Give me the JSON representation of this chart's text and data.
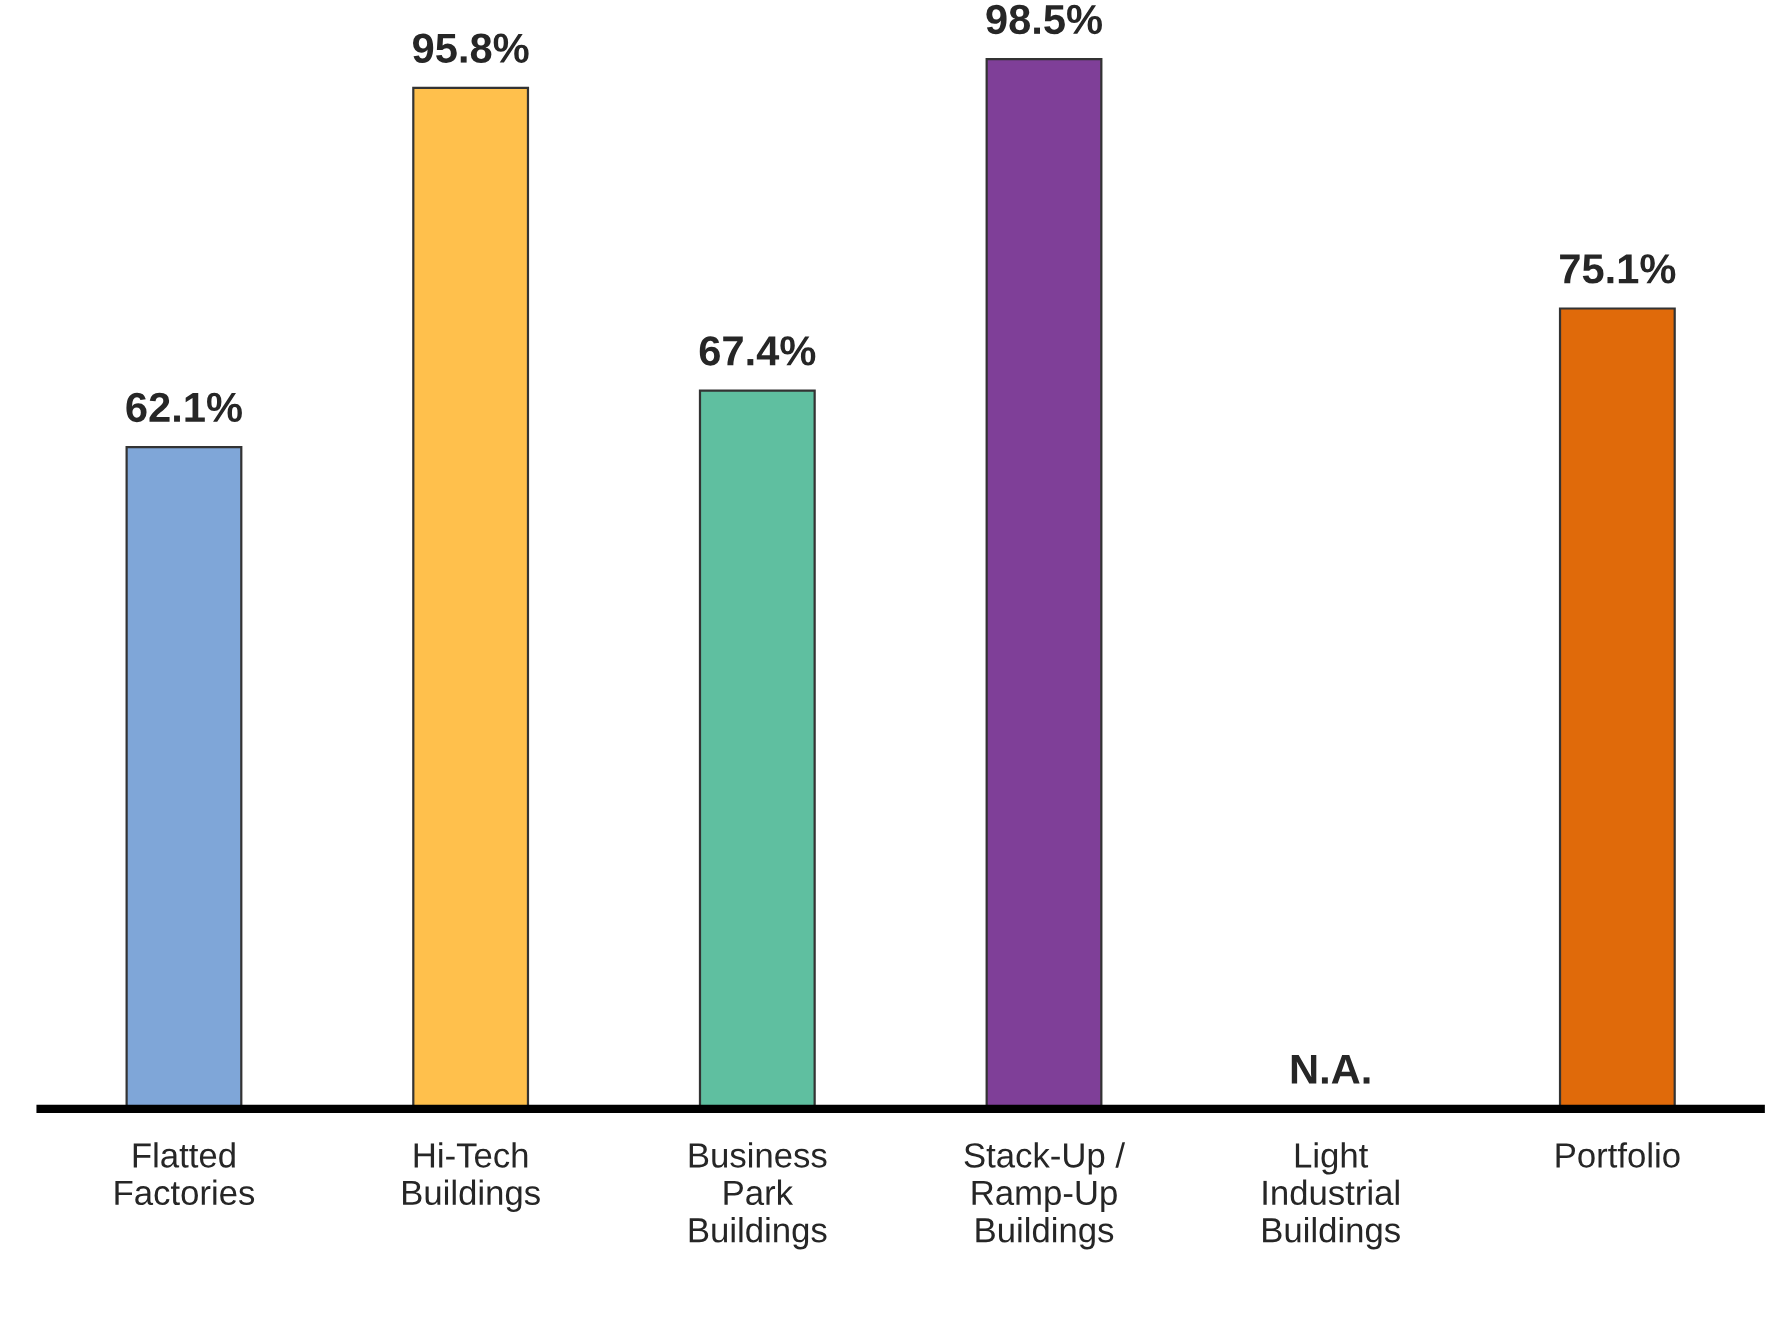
{
  "chart_data": {
    "type": "bar",
    "categories": [
      "Flatted\nFactories",
      "Hi-Tech\nBuildings",
      "Business\nPark\nBuildings",
      "Stack-Up /\nRamp-Up\nBuildings",
      "Light\nIndustrial\nBuildings",
      "Portfolio"
    ],
    "values": [
      62.1,
      95.8,
      67.4,
      98.5,
      null,
      75.1
    ],
    "colors": [
      "#7fa6d8",
      "#ffc04c",
      "#5fbfa0",
      "#7f3f98",
      null,
      "#e06a0a"
    ],
    "value_labels": [
      "62.1%",
      "95.8%",
      "67.4%",
      "98.5%",
      "N.A.",
      "75.1%"
    ],
    "grid": false,
    "legend": false
  }
}
